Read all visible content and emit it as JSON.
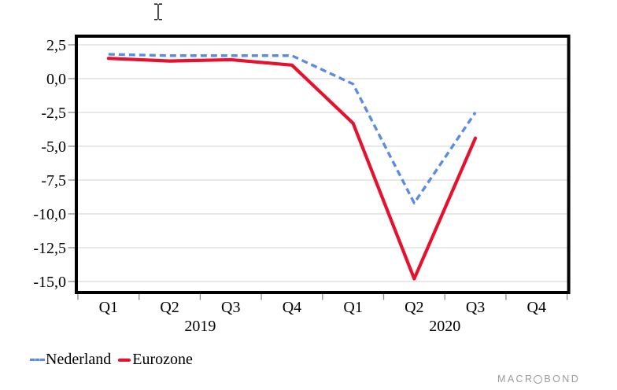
{
  "cursor": {
    "type": "text-ibeam"
  },
  "chart_data": {
    "type": "line",
    "title": "",
    "x_categories": [
      "Q1",
      "Q2",
      "Q3",
      "Q4",
      "Q1",
      "Q2",
      "Q3",
      "Q4"
    ],
    "year_labels": [
      {
        "text": "2019",
        "span": [
          0,
          4
        ]
      },
      {
        "text": "2020",
        "span": [
          4,
          8
        ]
      }
    ],
    "y_ticks": [
      {
        "value": 2.5,
        "label": "2,5"
      },
      {
        "value": 0,
        "label": "0,0"
      },
      {
        "value": -2.5,
        "label": "-2,5"
      },
      {
        "value": -5,
        "label": "-5,0"
      },
      {
        "value": -7.5,
        "label": "-7,5"
      },
      {
        "value": -10,
        "label": "-10,0"
      },
      {
        "value": -12.5,
        "label": "-12,5"
      },
      {
        "value": -15,
        "label": "-15,0"
      }
    ],
    "ylim": [
      -15.7,
      3.0
    ],
    "grid": true,
    "legend_position": "bottom-left",
    "series": [
      {
        "name": "Nederland",
        "style": "dashed",
        "color": "#5b8ce4",
        "values": [
          1.8,
          1.7,
          1.7,
          1.7,
          -0.4,
          -9.2,
          -2.5,
          null
        ]
      },
      {
        "name": "Eurozone",
        "style": "solid",
        "color": "#e8112d",
        "values": [
          1.5,
          1.3,
          1.4,
          1.0,
          -3.3,
          -14.8,
          -4.4,
          null
        ]
      }
    ],
    "colors": {
      "grid": "#d9d9d9",
      "tick": "#8c8c8c",
      "border": "#000000",
      "label": "#000000"
    }
  },
  "legend": {
    "items": [
      {
        "label": "Nederland"
      },
      {
        "label": "Eurozone"
      }
    ]
  },
  "watermark": {
    "left": "MACR",
    "right": "BOND",
    "color": "#9b9b9b"
  }
}
